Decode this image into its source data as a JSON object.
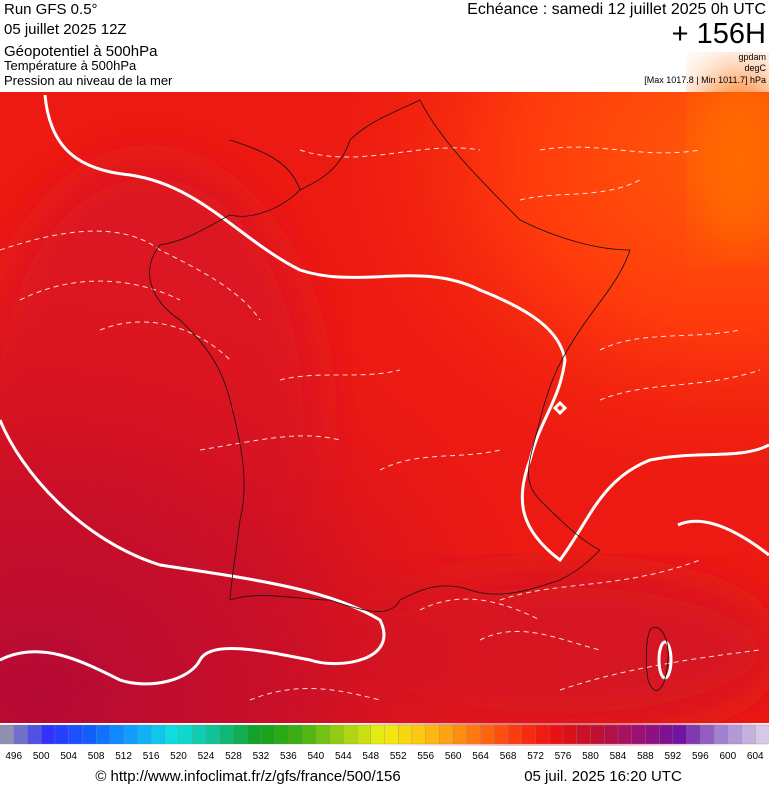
{
  "header": {
    "run": "Run GFS 0.5°",
    "date": "05 juillet 2025 12Z",
    "field1": "Géopotentiel à 500hPa",
    "field2": "Température à 500hPa",
    "field3": "Pression au niveau de la mer",
    "echeance": "Echéance : samedi 12 juillet 2025 0h UTC",
    "lead": "+ 156H",
    "unit1": "gpdam",
    "unit2": "degC",
    "range": "[Max 1017.8 | Min 1011.7] hPa"
  },
  "colorbar": {
    "labels": [
      496,
      500,
      504,
      508,
      512,
      516,
      520,
      524,
      528,
      532,
      536,
      540,
      544,
      548,
      552,
      556,
      560,
      564,
      568,
      572,
      576,
      580,
      584,
      588,
      592,
      596,
      600,
      604
    ]
  },
  "footer": {
    "url": "© http://www.infoclimat.fr/z/gfs/france/500/156",
    "timestamp": "05 juil. 2025 16:20 UTC"
  }
}
